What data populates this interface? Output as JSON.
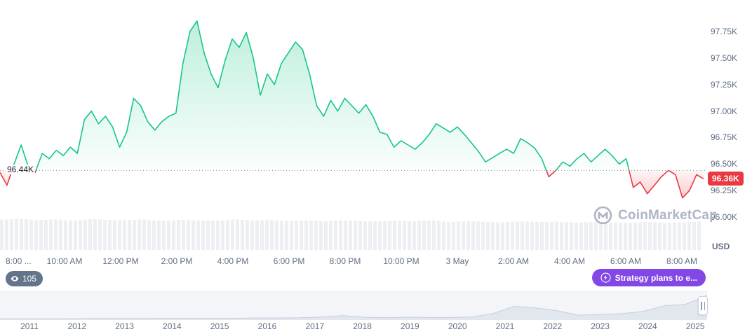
{
  "watermark": {
    "label": "CoinMarketCap"
  },
  "viewers_badge": {
    "count": "105"
  },
  "strategy_button": {
    "label": "Strategy plans to e..."
  },
  "chart_data": [
    {
      "type": "area",
      "name": "btc-price-intraday",
      "unit": "USD",
      "open_price": 96.44,
      "open_price_label": "96.44K",
      "last_price": 96.36,
      "last_price_label": "96.36K",
      "up_color": "#16c784",
      "down_color": "#ea3943",
      "ylim": [
        95.69,
        98.05
      ],
      "y_ticks": [
        "97.75K",
        "97.50K",
        "97.25K",
        "97.00K",
        "96.75K",
        "96.50K",
        "96.25K",
        "96.00K"
      ],
      "x_ticks": [
        "8:00 ...",
        "10:00 AM",
        "12:00 PM",
        "2:00 PM",
        "4:00 PM",
        "6:00 PM",
        "8:00 PM",
        "10:00 PM",
        "3 May",
        "2:00 AM",
        "4:00 AM",
        "6:00 AM",
        "8:00 AM"
      ],
      "series": [
        {
          "name": "price-usd-thousands",
          "values": [
            96.42,
            96.3,
            96.5,
            96.68,
            96.48,
            96.42,
            96.6,
            96.55,
            96.63,
            96.58,
            96.66,
            96.6,
            96.92,
            97.0,
            96.88,
            96.95,
            96.85,
            96.66,
            96.8,
            97.12,
            97.05,
            96.9,
            96.82,
            96.9,
            96.95,
            96.98,
            97.45,
            97.75,
            97.85,
            97.55,
            97.35,
            97.22,
            97.48,
            97.68,
            97.6,
            97.74,
            97.5,
            97.15,
            97.35,
            97.25,
            97.45,
            97.55,
            97.65,
            97.58,
            97.35,
            97.05,
            96.95,
            97.1,
            97.0,
            97.12,
            97.05,
            96.98,
            97.06,
            96.95,
            96.8,
            96.78,
            96.66,
            96.72,
            96.68,
            96.64,
            96.7,
            96.78,
            96.88,
            96.84,
            96.8,
            96.85,
            96.78,
            96.7,
            96.62,
            96.52,
            96.56,
            96.6,
            96.64,
            96.6,
            96.74,
            96.7,
            96.65,
            96.55,
            96.38,
            96.44,
            96.52,
            96.48,
            96.55,
            96.6,
            96.52,
            96.58,
            96.64,
            96.58,
            96.5,
            96.55,
            96.28,
            96.33,
            96.22,
            96.3,
            96.38,
            96.44,
            96.4,
            96.18,
            96.25,
            96.4,
            96.36
          ]
        }
      ],
      "volume": [
        0.92,
        0.95,
        0.9,
        0.93,
        0.89,
        0.94,
        0.91,
        0.9,
        0.93,
        0.88,
        0.92,
        0.9,
        0.89,
        0.93,
        0.9,
        0.91,
        0.88,
        0.9,
        0.87,
        0.9,
        0.88,
        0.86,
        0.89,
        0.87,
        0.9,
        0.85,
        0.88,
        0.86,
        0.84,
        0.87,
        0.85,
        0.86,
        0.83,
        0.85,
        0.84,
        0.82,
        0.85,
        0.83,
        0.84,
        0.86
      ]
    },
    {
      "type": "area",
      "name": "history-navigator",
      "x_ticks": [
        "2011",
        "2012",
        "2013",
        "2014",
        "2015",
        "2016",
        "2017",
        "2018",
        "2019",
        "2020",
        "2021",
        "2022",
        "2023",
        "2024",
        "2025"
      ],
      "series": [
        {
          "name": "price-history-relative",
          "values": [
            0.02,
            0.02,
            0.02,
            0.02,
            0.03,
            0.03,
            0.03,
            0.03,
            0.04,
            0.04,
            0.04,
            0.04,
            0.05,
            0.05,
            0.06,
            0.09,
            0.14,
            0.08,
            0.06,
            0.08,
            0.07,
            0.07,
            0.09,
            0.22,
            0.5,
            0.44,
            0.33,
            0.16,
            0.18,
            0.22,
            0.3,
            0.52,
            0.58,
            0.92
          ]
        }
      ]
    }
  ]
}
